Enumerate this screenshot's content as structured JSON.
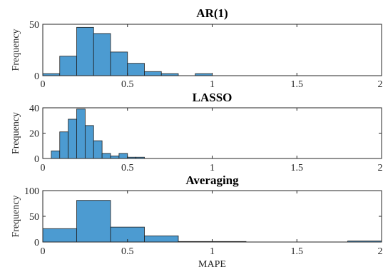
{
  "chart_data": [
    {
      "type": "bar",
      "title": "AR(1)",
      "ylabel": "Frequency",
      "xlabel": "",
      "xlim": [
        0,
        2
      ],
      "ylim": [
        0,
        50
      ],
      "xticks": [
        "0",
        "0.5",
        "1",
        "1.5",
        "2"
      ],
      "yticks": [
        "0",
        "50"
      ],
      "bin_edges": [
        0,
        0.1,
        0.2,
        0.3,
        0.4,
        0.5,
        0.6,
        0.7,
        0.8,
        0.9,
        1.0
      ],
      "values": [
        2,
        19,
        47,
        41,
        23,
        12,
        4,
        2,
        0,
        2
      ]
    },
    {
      "type": "bar",
      "title": "LASSO",
      "ylabel": "Frequency",
      "xlabel": "",
      "xlim": [
        0,
        2
      ],
      "ylim": [
        0,
        40
      ],
      "xticks": [
        "0",
        "0.5",
        "1",
        "1.5",
        "2"
      ],
      "yticks": [
        "0",
        "20",
        "40"
      ],
      "bin_edges": [
        0.05,
        0.1,
        0.15,
        0.2,
        0.25,
        0.3,
        0.35,
        0.4,
        0.45,
        0.5,
        0.55,
        0.6
      ],
      "values": [
        6,
        21,
        31,
        39,
        26,
        14,
        4,
        2,
        4,
        1,
        1
      ]
    },
    {
      "type": "bar",
      "title": "Averaging",
      "ylabel": "Frequency",
      "xlabel": "MAPE",
      "xlim": [
        0,
        2
      ],
      "ylim": [
        0,
        100
      ],
      "xticks": [
        "0",
        "0.5",
        "1",
        "1.5",
        "2"
      ],
      "yticks": [
        "0",
        "50",
        "100"
      ],
      "bin_edges": [
        0,
        0.2,
        0.4,
        0.6,
        0.8,
        1.0,
        1.2,
        1.4,
        1.6,
        1.8,
        2.0
      ],
      "values": [
        26,
        81,
        29,
        12,
        1,
        1,
        0,
        0,
        0,
        2
      ]
    }
  ]
}
